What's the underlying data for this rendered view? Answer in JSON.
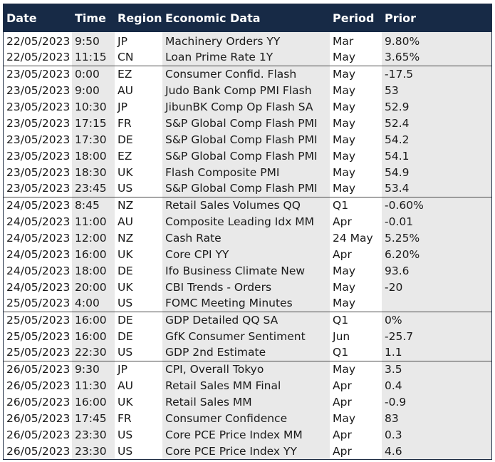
{
  "header": {
    "date": "Date",
    "time": "Time",
    "region": "Region",
    "data": "Economic Data",
    "period": "Period",
    "prior": "Prior"
  },
  "rows": [
    {
      "date": "22/05/2023",
      "time": "9:50",
      "region": "JP",
      "data": "Machinery Orders YY",
      "period": "Mar",
      "prior": "9.80%"
    },
    {
      "date": "22/05/2023",
      "time": "11:15",
      "region": "CN",
      "data": "Loan Prime Rate 1Y",
      "period": "May",
      "prior": "3.65%"
    },
    {
      "date": "23/05/2023",
      "time": "0:00",
      "region": "EZ",
      "data": "Consumer Confid. Flash",
      "period": "May",
      "prior": "-17.5"
    },
    {
      "date": "23/05/2023",
      "time": "9:00",
      "region": "AU",
      "data": "Judo Bank Comp PMI Flash",
      "period": "May",
      "prior": "53"
    },
    {
      "date": "23/05/2023",
      "time": "10:30",
      "region": "JP",
      "data": "JibunBK Comp Op Flash SA",
      "period": "May",
      "prior": "52.9"
    },
    {
      "date": "23/05/2023",
      "time": "17:15",
      "region": "FR",
      "data": "S&P Global Comp Flash PMI",
      "period": "May",
      "prior": "52.4"
    },
    {
      "date": "23/05/2023",
      "time": "17:30",
      "region": "DE",
      "data": "S&P Global Comp Flash PMI",
      "period": "May",
      "prior": "54.2"
    },
    {
      "date": "23/05/2023",
      "time": "18:00",
      "region": "EZ",
      "data": "S&P Global Comp Flash PMI",
      "period": "May",
      "prior": "54.1"
    },
    {
      "date": "23/05/2023",
      "time": "18:30",
      "region": "UK",
      "data": "Flash Composite PMI",
      "period": "May",
      "prior": "54.9"
    },
    {
      "date": "23/05/2023",
      "time": "23:45",
      "region": "US",
      "data": "S&P Global Comp Flash PMI",
      "period": "May",
      "prior": "53.4"
    },
    {
      "date": "24/05/2023",
      "time": "8:45",
      "region": "NZ",
      "data": "Retail Sales Volumes QQ",
      "period": "Q1",
      "prior": "-0.60%"
    },
    {
      "date": "24/05/2023",
      "time": "11:00",
      "region": "AU",
      "data": "Composite Leading Idx MM",
      "period": "Apr",
      "prior": "-0.01"
    },
    {
      "date": "24/05/2023",
      "time": "12:00",
      "region": "NZ",
      "data": "Cash Rate",
      "period": "24 May",
      "prior": "5.25%"
    },
    {
      "date": "24/05/2023",
      "time": "16:00",
      "region": "UK",
      "data": "Core CPI YY",
      "period": "Apr",
      "prior": "6.20%"
    },
    {
      "date": "24/05/2023",
      "time": "18:00",
      "region": "DE",
      "data": "Ifo Business Climate New",
      "period": "May",
      "prior": "93.6"
    },
    {
      "date": "24/05/2023",
      "time": "20:00",
      "region": "UK",
      "data": "CBI Trends - Orders",
      "period": "May",
      "prior": "-20"
    },
    {
      "date": "25/05/2023",
      "time": "4:00",
      "region": "US",
      "data": "FOMC Meeting Minutes",
      "period": "May",
      "prior": ""
    },
    {
      "date": "25/05/2023",
      "time": "16:00",
      "region": "DE",
      "data": "GDP Detailed QQ SA",
      "period": "Q1",
      "prior": "0%"
    },
    {
      "date": "25/05/2023",
      "time": "16:00",
      "region": "DE",
      "data": "GfK Consumer Sentiment",
      "period": "Jun",
      "prior": "-25.7"
    },
    {
      "date": "25/05/2023",
      "time": "22:30",
      "region": "US",
      "data": "GDP 2nd Estimate",
      "period": "Q1",
      "prior": "1.1"
    },
    {
      "date": "26/05/2023",
      "time": "9:30",
      "region": "JP",
      "data": "CPI, Overall Tokyo",
      "period": "May",
      "prior": "3.5"
    },
    {
      "date": "26/05/2023",
      "time": "11:30",
      "region": "AU",
      "data": "Retail Sales MM Final",
      "period": "Apr",
      "prior": "0.4"
    },
    {
      "date": "26/05/2023",
      "time": "16:00",
      "region": "UK",
      "data": "Retail Sales MM",
      "period": "Apr",
      "prior": "-0.9"
    },
    {
      "date": "26/05/2023",
      "time": "17:45",
      "region": "FR",
      "data": "Consumer Confidence",
      "period": "May",
      "prior": "83"
    },
    {
      "date": "26/05/2023",
      "time": "23:30",
      "region": "US",
      "data": "Core PCE Price Index MM",
      "period": "Apr",
      "prior": "0.3"
    },
    {
      "date": "26/05/2023",
      "time": "23:30",
      "region": "US",
      "data": "Core PCE Price Index YY",
      "period": "Apr",
      "prior": "4.6"
    }
  ],
  "group_start_rows": [
    2,
    10,
    17,
    20
  ],
  "colors": {
    "header_bg": "#172a46",
    "header_text": "#ffffff",
    "shaded_column": "#e9e9e9",
    "group_divider": "#4a4a4a"
  }
}
